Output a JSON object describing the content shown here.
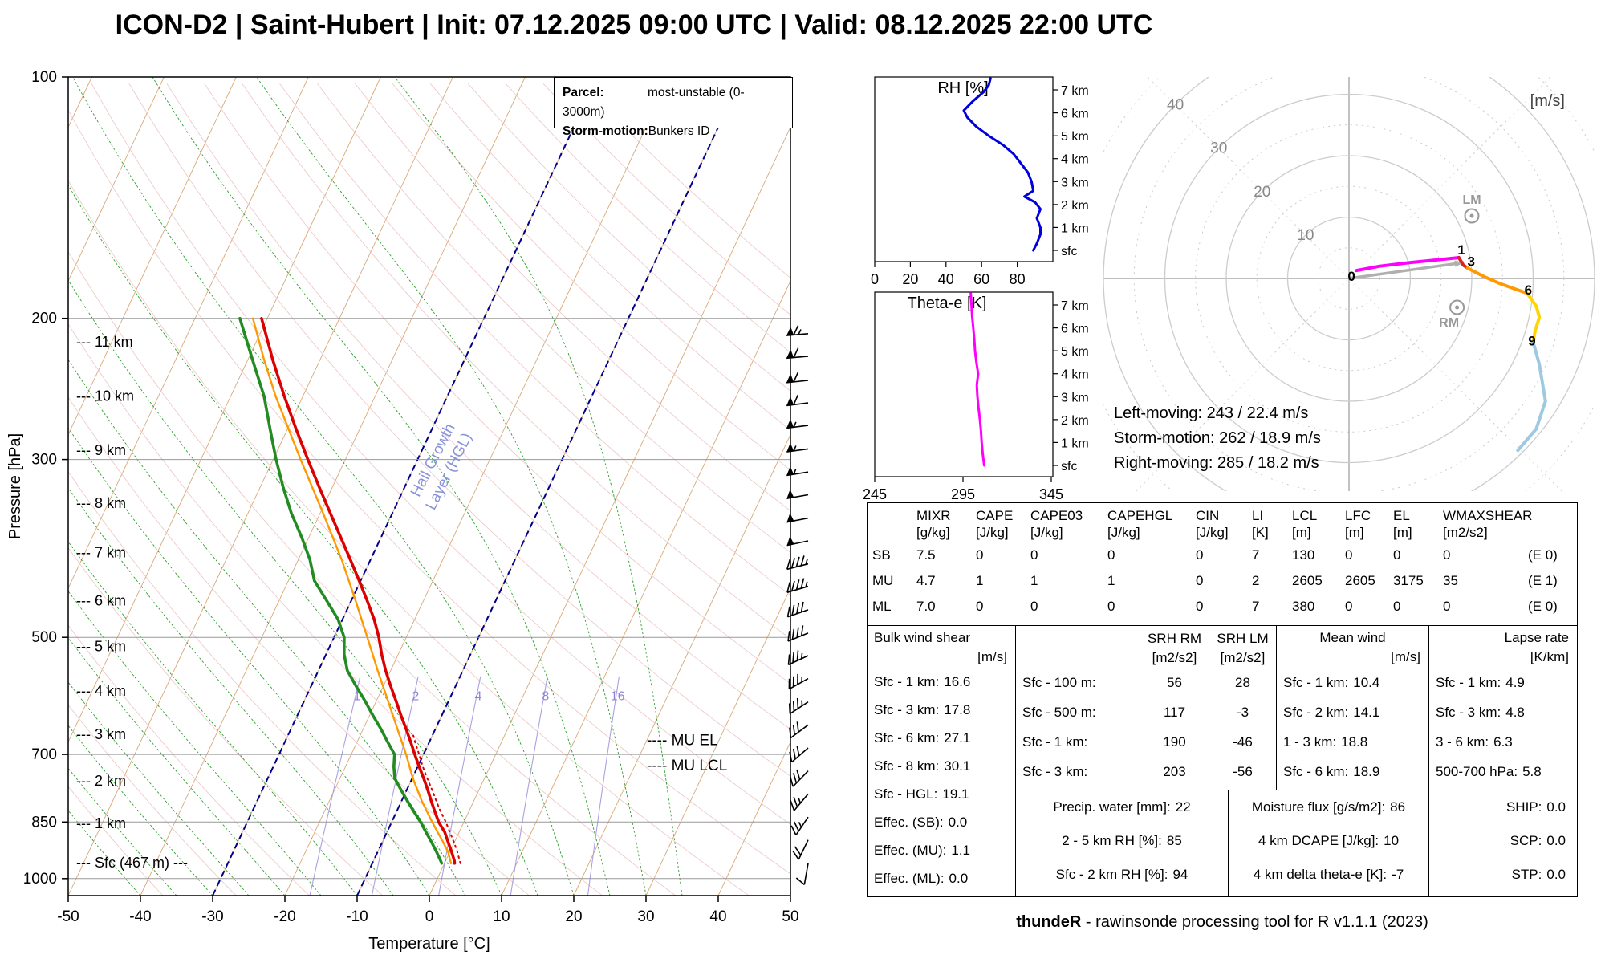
{
  "title": "ICON-D2 | Saint-Hubert | Init: 07.12.2025 09:00 UTC | Valid: 08.12.2025 22:00 UTC",
  "skewt": {
    "xlabel": "Temperature [°C]",
    "ylabel": "Pressure [hPa]",
    "legend": {
      "parcel_label": "Parcel:",
      "parcel_value": "most-unstable (0-3000m)",
      "storm_label": "Storm-motion:",
      "storm_value": "Bunkers ID"
    },
    "pressure_ticks": [
      100,
      200,
      300,
      500,
      700,
      850,
      1000
    ],
    "temp_ticks": [
      -50,
      -40,
      -30,
      -20,
      -10,
      0,
      10,
      20,
      30,
      40,
      50
    ],
    "height_labels": [
      {
        "text": "--- 11 km",
        "p": 214
      },
      {
        "text": "--- 10 km",
        "p": 250
      },
      {
        "text": "--- 9 km",
        "p": 292
      },
      {
        "text": "--- 8 km",
        "p": 340
      },
      {
        "text": "--- 7 km",
        "p": 392
      },
      {
        "text": "--- 6 km",
        "p": 450
      },
      {
        "text": "--- 5 km",
        "p": 513
      },
      {
        "text": "--- 4 km",
        "p": 583
      },
      {
        "text": "--- 3 km",
        "p": 661
      },
      {
        "text": "--- 2 km",
        "p": 755
      },
      {
        "text": "--- 1 km",
        "p": 853
      },
      {
        "text": "--- Sfc (467 m) ---",
        "p": 955
      }
    ],
    "mixing_ratio_labels": [
      1,
      2,
      4,
      8,
      16
    ],
    "annotations": {
      "hgl_line1": "Hail Growth",
      "hgl_line2": "Layer (HGL)",
      "hgl_temps": [
        -10,
        -30
      ],
      "mu_el_label": "---- MU EL",
      "mu_el_p": 672,
      "mu_lcl_label": "---- MU LCL",
      "mu_lcl_p": 723
    }
  },
  "chart_data": {
    "sounding": {
      "type": "line",
      "x_unit": "°C",
      "y_unit": "hPa",
      "temperature": [
        [
          957,
          1.4
        ],
        [
          950,
          1.2
        ],
        [
          925,
          0.2
        ],
        [
          900,
          -0.9
        ],
        [
          875,
          -2.0
        ],
        [
          850,
          -3.5
        ],
        [
          825,
          -4.7
        ],
        [
          800,
          -5.9
        ],
        [
          775,
          -7.1
        ],
        [
          750,
          -8.4
        ],
        [
          725,
          -9.8
        ],
        [
          700,
          -11.2
        ],
        [
          675,
          -12.6
        ],
        [
          650,
          -14.1
        ],
        [
          625,
          -15.7
        ],
        [
          600,
          -17.3
        ],
        [
          575,
          -19.0
        ],
        [
          550,
          -20.7
        ],
        [
          525,
          -22.3
        ],
        [
          500,
          -23.8
        ],
        [
          475,
          -25.6
        ],
        [
          450,
          -27.8
        ],
        [
          425,
          -30.2
        ],
        [
          400,
          -32.8
        ],
        [
          375,
          -35.6
        ],
        [
          350,
          -38.6
        ],
        [
          325,
          -41.8
        ],
        [
          300,
          -45.2
        ],
        [
          275,
          -48.8
        ],
        [
          250,
          -52.6
        ],
        [
          225,
          -56.6
        ],
        [
          200,
          -60.8
        ]
      ],
      "dewpoint": [
        [
          957,
          -0.4
        ],
        [
          950,
          -0.7
        ],
        [
          925,
          -1.9
        ],
        [
          900,
          -3.2
        ],
        [
          875,
          -4.6
        ],
        [
          850,
          -6.0
        ],
        [
          825,
          -7.6
        ],
        [
          800,
          -9.2
        ],
        [
          775,
          -10.8
        ],
        [
          750,
          -12.4
        ],
        [
          725,
          -13.3
        ],
        [
          700,
          -14.0
        ],
        [
          675,
          -15.8
        ],
        [
          650,
          -17.6
        ],
        [
          625,
          -19.6
        ],
        [
          600,
          -21.6
        ],
        [
          575,
          -23.8
        ],
        [
          550,
          -26.0
        ],
        [
          525,
          -27.5
        ],
        [
          500,
          -28.6
        ],
        [
          475,
          -30.6
        ],
        [
          450,
          -33.4
        ],
        [
          425,
          -36.4
        ],
        [
          400,
          -38.4
        ],
        [
          375,
          -41.0
        ],
        [
          350,
          -44.0
        ],
        [
          325,
          -46.8
        ],
        [
          300,
          -49.6
        ],
        [
          275,
          -52.4
        ],
        [
          250,
          -55.4
        ],
        [
          225,
          -59.4
        ],
        [
          200,
          -63.8
        ]
      ],
      "parcel": [
        [
          957,
          0.9
        ],
        [
          925,
          -0.3
        ],
        [
          900,
          -1.6
        ],
        [
          850,
          -4.4
        ],
        [
          800,
          -7.2
        ],
        [
          750,
          -9.9
        ],
        [
          700,
          -12.4
        ],
        [
          650,
          -15.3
        ],
        [
          600,
          -18.4
        ],
        [
          550,
          -21.8
        ],
        [
          500,
          -25.4
        ],
        [
          450,
          -29.4
        ],
        [
          400,
          -34.0
        ],
        [
          350,
          -39.6
        ],
        [
          300,
          -46.2
        ],
        [
          250,
          -53.8
        ],
        [
          225,
          -57.8
        ],
        [
          200,
          -62.0
        ]
      ],
      "parcel_virtual": [
        [
          957,
          2.2
        ],
        [
          925,
          1.0
        ],
        [
          900,
          -0.1
        ],
        [
          875,
          -1.3
        ],
        [
          850,
          -2.5
        ],
        [
          825,
          -3.9
        ],
        [
          800,
          -5.2
        ],
        [
          775,
          -6.5
        ],
        [
          750,
          -7.9
        ],
        [
          725,
          -9.3
        ],
        [
          700,
          -10.6
        ],
        [
          675,
          -12.0
        ],
        [
          660,
          -12.8
        ]
      ],
      "winds": [
        {
          "p": 957,
          "spd": 5,
          "dir": 190
        },
        {
          "p": 895,
          "spd": 9,
          "dir": 206
        },
        {
          "p": 838,
          "spd": 12,
          "dir": 214
        },
        {
          "p": 784,
          "spd": 13,
          "dir": 220
        },
        {
          "p": 734,
          "spd": 14,
          "dir": 224
        },
        {
          "p": 687,
          "spd": 15,
          "dir": 229
        },
        {
          "p": 643,
          "spd": 15.5,
          "dir": 233
        },
        {
          "p": 602,
          "spd": 16.5,
          "dir": 237
        },
        {
          "p": 563,
          "spd": 17.5,
          "dir": 241
        },
        {
          "p": 527,
          "spd": 18,
          "dir": 245
        },
        {
          "p": 494,
          "spd": 19,
          "dir": 248
        },
        {
          "p": 462,
          "spd": 20,
          "dir": 251
        },
        {
          "p": 432,
          "spd": 21.5,
          "dir": 254
        },
        {
          "p": 405,
          "spd": 22.5,
          "dir": 256
        },
        {
          "p": 379,
          "spd": 24,
          "dir": 258
        },
        {
          "p": 355,
          "spd": 25,
          "dir": 259
        },
        {
          "p": 332,
          "spd": 25.5,
          "dir": 260
        },
        {
          "p": 311,
          "spd": 26.5,
          "dir": 261
        },
        {
          "p": 291,
          "spd": 27.5,
          "dir": 262
        },
        {
          "p": 272,
          "spd": 28,
          "dir": 263
        },
        {
          "p": 255,
          "spd": 29,
          "dir": 263
        },
        {
          "p": 239,
          "spd": 30,
          "dir": 264
        },
        {
          "p": 223,
          "spd": 30.5,
          "dir": 265
        },
        {
          "p": 209,
          "spd": 31.5,
          "dir": 265
        }
      ]
    },
    "rh_panel": {
      "type": "line",
      "title": "RH [%]",
      "x_ticks": [
        0,
        20,
        40,
        60,
        80
      ],
      "height_ticks": [
        "7 km",
        "6 km",
        "5 km",
        "4 km",
        "3 km",
        "2 km",
        "1 km",
        "sfc"
      ],
      "points_km_pct": [
        [
          0,
          89
        ],
        [
          0.3,
          91
        ],
        [
          0.7,
          93
        ],
        [
          1,
          93
        ],
        [
          1.4,
          91
        ],
        [
          1.8,
          93
        ],
        [
          2.1,
          90
        ],
        [
          2.35,
          84
        ],
        [
          2.6,
          89
        ],
        [
          3,
          88
        ],
        [
          3.4,
          86
        ],
        [
          3.8,
          82
        ],
        [
          4.2,
          78
        ],
        [
          4.6,
          72
        ],
        [
          5,
          64
        ],
        [
          5.4,
          57
        ],
        [
          5.8,
          52
        ],
        [
          6.1,
          50
        ],
        [
          6.5,
          55
        ],
        [
          6.9,
          61
        ],
        [
          7.2,
          64
        ],
        [
          7.5,
          65
        ]
      ]
    },
    "thetae_panel": {
      "type": "line",
      "title": "Theta-e [K]",
      "x_ticks": [
        245,
        295,
        345
      ],
      "height_ticks": [
        "7 km",
        "6 km",
        "5 km",
        "4 km",
        "3 km",
        "2 km",
        "1 km",
        "sfc"
      ],
      "points_km_K": [
        [
          0,
          307
        ],
        [
          0.5,
          306.2
        ],
        [
          1,
          305.6
        ],
        [
          1.5,
          305.2
        ],
        [
          2,
          304.6
        ],
        [
          2.5,
          303.8
        ],
        [
          3,
          303.2
        ],
        [
          3.5,
          302.8
        ],
        [
          4,
          303.6
        ],
        [
          4.5,
          302.6
        ],
        [
          5,
          301.8
        ],
        [
          5.5,
          301.4
        ],
        [
          6,
          300.8
        ],
        [
          6.5,
          300.2
        ],
        [
          7,
          299.8
        ],
        [
          7.5,
          299.4
        ]
      ]
    },
    "hodograph": {
      "type": "line",
      "unit_label": "[m/s]",
      "ring_labels": [
        10,
        20,
        30,
        40
      ],
      "rings_solid": [
        10,
        20,
        30,
        40
      ],
      "rings_dotted": [
        5,
        15,
        25,
        35,
        45
      ],
      "segments": [
        {
          "km": "0-1",
          "color": "#ff00ff",
          "pts": [
            [
              1.2,
              1.3
            ],
            [
              5,
              2
            ],
            [
              10,
              2.6
            ],
            [
              14,
              3
            ],
            [
              17.9,
              3.4
            ]
          ]
        },
        {
          "km": "1-3",
          "color": "#dd2222",
          "pts": [
            [
              17.9,
              3.4
            ],
            [
              18.6,
              2.2
            ],
            [
              19.3,
              1.7
            ]
          ]
        },
        {
          "km": "3-6",
          "color": "#ff9900",
          "pts": [
            [
              19.3,
              1.7
            ],
            [
              22,
              0.3
            ],
            [
              24.5,
              -0.8
            ],
            [
              27,
              -1.7
            ],
            [
              29,
              -2.4
            ]
          ]
        },
        {
          "km": "6-9",
          "color": "#ffd400",
          "pts": [
            [
              29,
              -2.4
            ],
            [
              30.5,
              -4.5
            ],
            [
              31,
              -6.3
            ],
            [
              30.3,
              -8.6
            ],
            [
              30,
              -10.4
            ]
          ]
        },
        {
          "km": "9-12",
          "color": "#9ecae1",
          "pts": [
            [
              30,
              -10.4
            ],
            [
              31,
              -14
            ],
            [
              32,
              -20
            ],
            [
              30.5,
              -24.5
            ],
            [
              27.5,
              -28
            ]
          ]
        }
      ],
      "km_markers": [
        {
          "label": "0",
          "u": 0.4,
          "v": -0.4
        },
        {
          "label": "1",
          "u": 18.3,
          "v": 3.9
        },
        {
          "label": "3",
          "u": 19.9,
          "v": 2.0
        },
        {
          "label": "6",
          "u": 29.2,
          "v": -2.6
        },
        {
          "label": "9",
          "u": 29.8,
          "v": -10.9
        }
      ],
      "lm_marker": {
        "label": "LM",
        "u": 20.0,
        "v": 10.2
      },
      "rm_marker": {
        "label": "RM",
        "u": 17.6,
        "v": -4.7
      },
      "mean_vector": {
        "u": 18.7,
        "v": 2.6
      },
      "text": [
        "Left-moving: 243 / 22.4 m/s",
        "Storm-motion: 262 / 18.9 m/s",
        "Right-moving: 285 / 18.2 m/s"
      ]
    }
  },
  "tables": {
    "indices": {
      "headers": [
        "",
        "MIXR",
        "CAPE",
        "CAPE03",
        "CAPEHGL",
        "CIN",
        "LI",
        "LCL",
        "LFC",
        "EL",
        "WMAXSHEAR",
        ""
      ],
      "units": [
        "",
        "[g/kg]",
        "[J/kg]",
        "[J/kg]",
        "[J/kg]",
        "[J/kg]",
        "[K]",
        "[m]",
        "[m]",
        "[m]",
        "[m2/s2]",
        ""
      ],
      "rows": [
        {
          "label": "SB",
          "values": [
            "7.5",
            "0",
            "0",
            "0",
            "0",
            "7",
            "130",
            "0",
            "0",
            "0",
            "(E 0)"
          ]
        },
        {
          "label": "MU",
          "values": [
            "4.7",
            "1",
            "1",
            "1",
            "0",
            "2",
            "2605",
            "2605",
            "3175",
            "35",
            "(E 1)"
          ]
        },
        {
          "label": "ML",
          "values": [
            "7.0",
            "0",
            "0",
            "0",
            "0",
            "7",
            "380",
            "0",
            "0",
            "0",
            "(E 0)"
          ]
        }
      ]
    },
    "bulk_shear": {
      "title": "Bulk wind shear",
      "unit": "[m/s]",
      "rows": [
        [
          "Sfc - 1 km:",
          "16.6"
        ],
        [
          "Sfc - 3 km:",
          "17.8"
        ],
        [
          "Sfc - 6 km:",
          "27.1"
        ],
        [
          "Sfc - 8 km:",
          "30.1"
        ],
        [
          "Sfc - HGL:",
          "19.1"
        ],
        [
          "Effec. (SB):",
          "0.0"
        ],
        [
          "Effec. (MU):",
          "1.1"
        ],
        [
          "Effec. (ML):",
          "0.0"
        ]
      ]
    },
    "srh": {
      "headers": [
        "SRH RM",
        "SRH LM"
      ],
      "units": [
        "[m2/s2]",
        "[m2/s2]"
      ],
      "rows": [
        [
          "Sfc - 100 m:",
          "56",
          "28"
        ],
        [
          "Sfc - 500 m:",
          "117",
          "-3"
        ],
        [
          "Sfc - 1 km:",
          "190",
          "-46"
        ],
        [
          "Sfc - 3 km:",
          "203",
          "-56"
        ]
      ]
    },
    "mean_wind": {
      "title": "Mean wind",
      "unit": "[m/s]",
      "rows": [
        [
          "Sfc - 1 km:",
          "10.4"
        ],
        [
          "Sfc - 2 km:",
          "14.1"
        ],
        [
          "1 - 3 km:",
          "18.8"
        ],
        [
          "Sfc - 6 km:",
          "18.9"
        ]
      ]
    },
    "lapse_rate": {
      "title": "Lapse rate",
      "unit": "[K/km]",
      "rows": [
        [
          "Sfc - 1 km:",
          "4.9"
        ],
        [
          "Sfc - 3 km:",
          "4.8"
        ],
        [
          "3 - 6 km:",
          "6.3"
        ],
        [
          "500-700 hPa:",
          "5.8"
        ]
      ]
    },
    "precip_box": {
      "rows": [
        [
          "Precip. water [mm]:",
          "22"
        ],
        [
          "2 - 5 km RH [%]:",
          "85"
        ],
        [
          "Sfc - 2 km RH [%]:",
          "94"
        ]
      ]
    },
    "moisture_box": {
      "rows": [
        [
          "Moisture flux [g/s/m2]:",
          "86"
        ],
        [
          "4 km DCAPE [J/kg]:",
          "10"
        ],
        [
          "4 km delta theta-e [K]:",
          "-7"
        ]
      ]
    },
    "composite_box": {
      "rows": [
        [
          "SHIP:",
          "0.0"
        ],
        [
          "SCP:",
          "0.0"
        ],
        [
          "STP:",
          "0.0"
        ]
      ]
    }
  },
  "footer": {
    "brand": "thundeR",
    "text": " - rawinsonde processing tool for R v1.1.1 (2023)"
  }
}
